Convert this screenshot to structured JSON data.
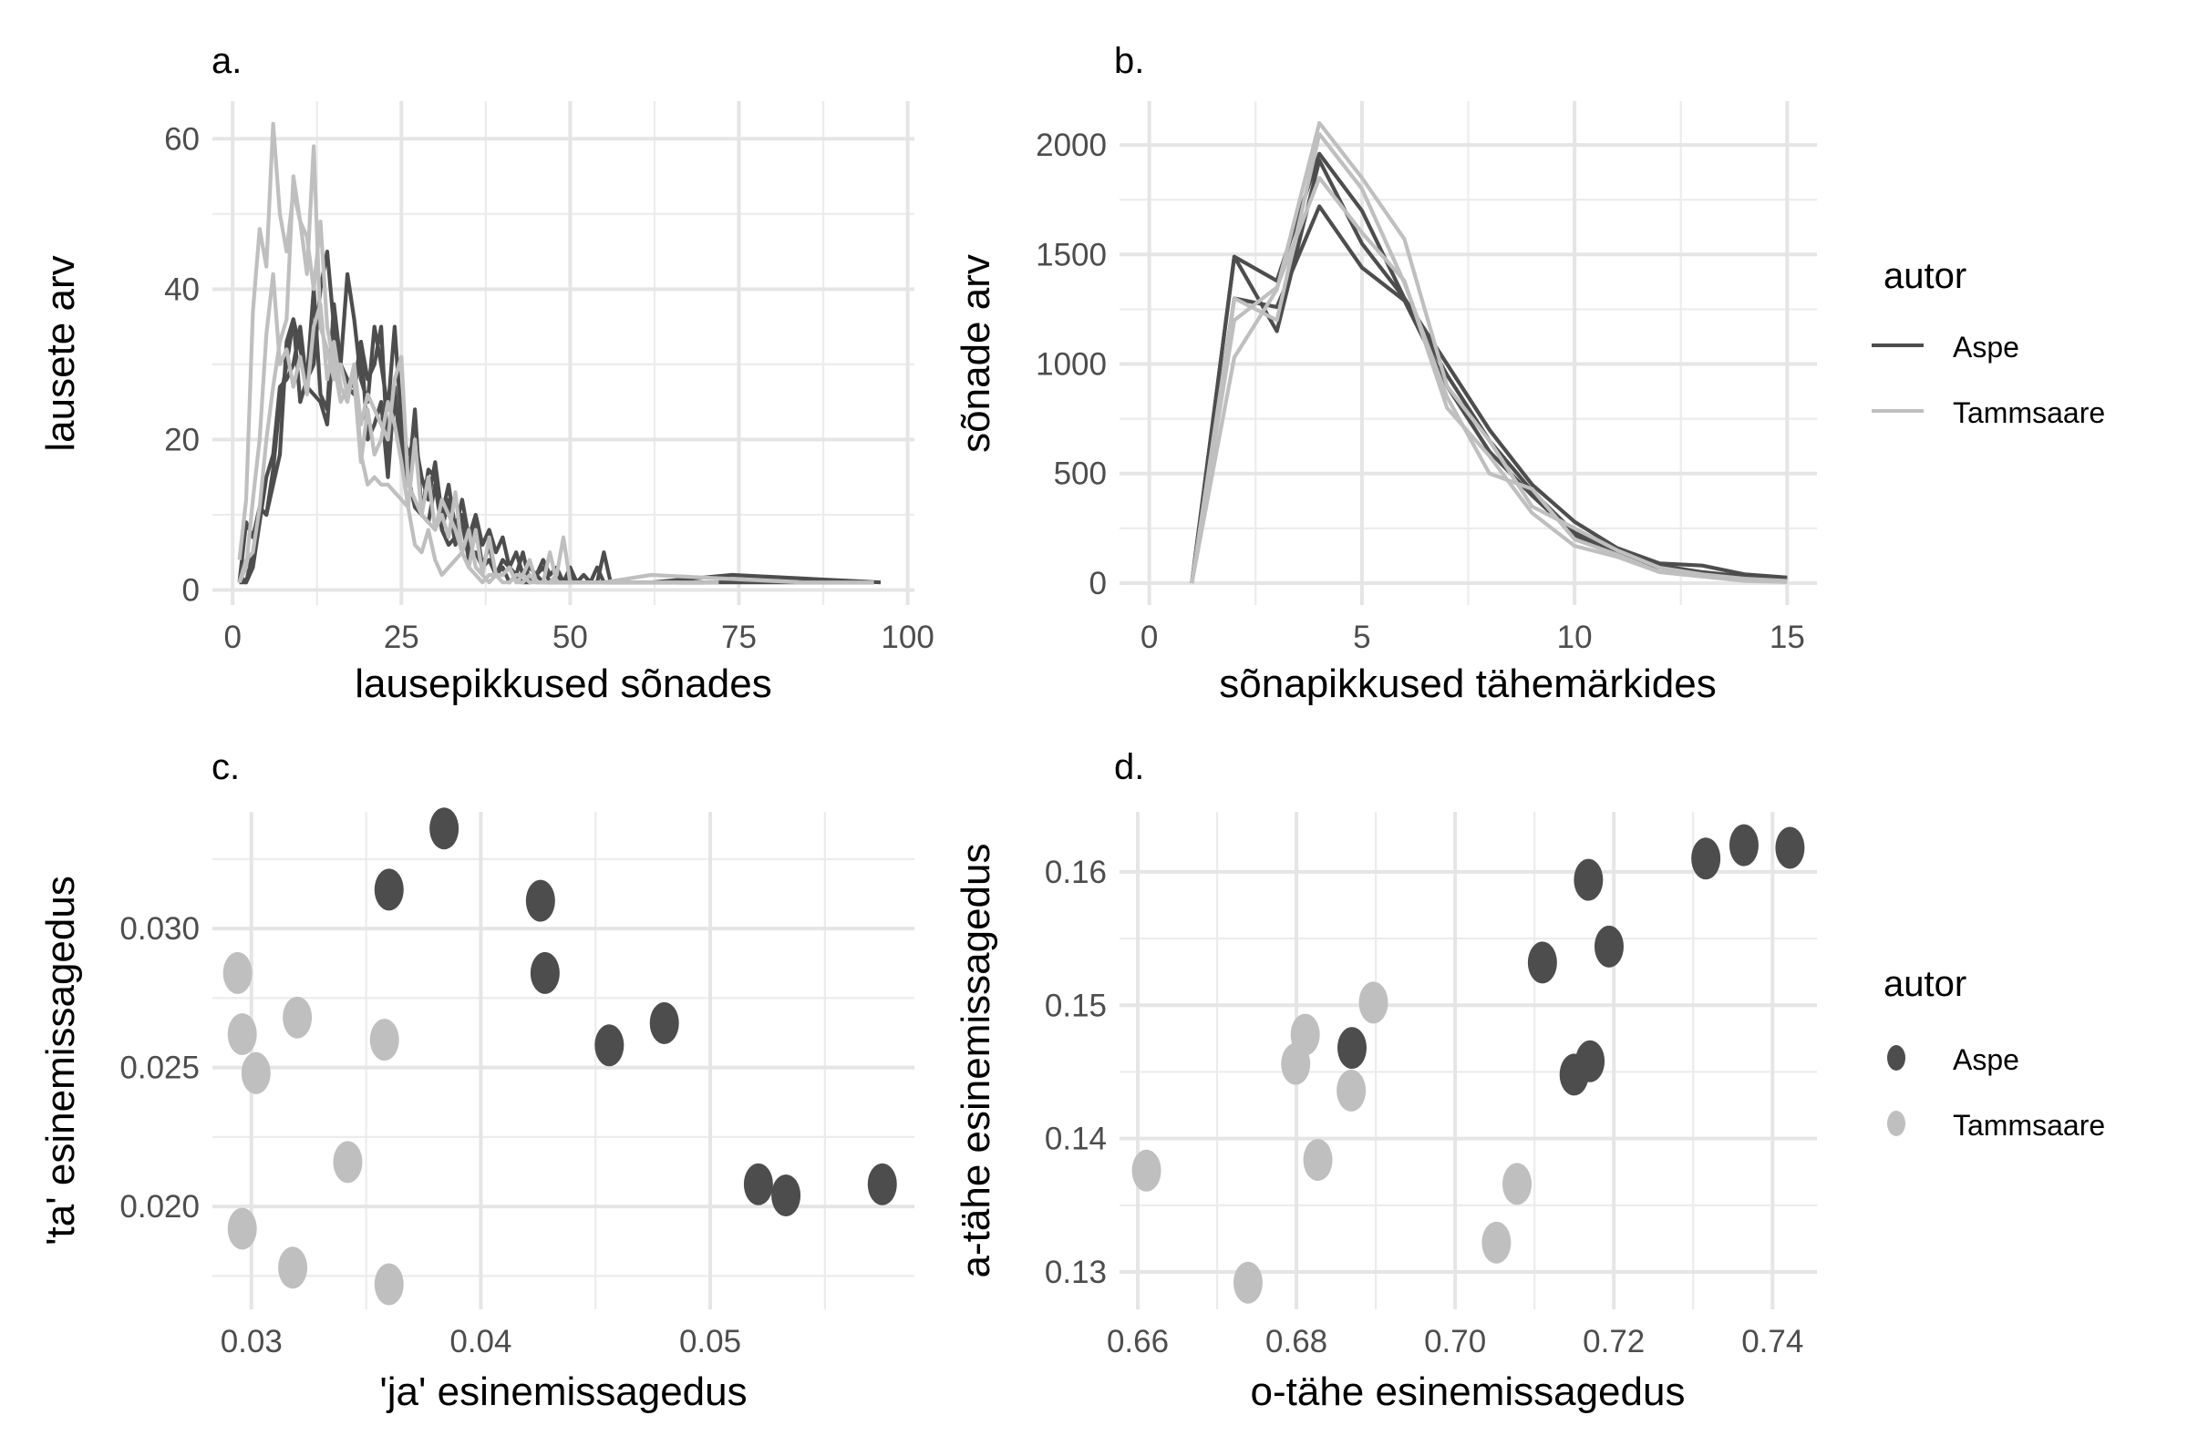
{
  "colors": {
    "Aspe": "#4d4d4d",
    "Tammsaare": "#bfbfbf",
    "grid": "#e5e5e5"
  },
  "legends": [
    {
      "title": "autor",
      "type": "line",
      "entries": [
        "Aspe",
        "Tammsaare"
      ]
    },
    {
      "title": "autor",
      "type": "point",
      "entries": [
        "Aspe",
        "Tammsaare"
      ]
    }
  ],
  "chart_data": [
    {
      "panel": "a.",
      "type": "line",
      "xlabel": "lausepikkused sõnades",
      "ylabel": "lausete arv",
      "xlim": [
        -3,
        101
      ],
      "ylim": [
        -2,
        65
      ],
      "xticks": [
        0,
        25,
        50,
        75,
        100
      ],
      "yticks": [
        0,
        20,
        40,
        60
      ],
      "xminor": [
        12.5,
        37.5,
        62.5,
        87.5
      ],
      "yminor": [
        10,
        30,
        50
      ],
      "grid": true,
      "series": [
        {
          "name": "Aspe",
          "x_start": 1,
          "values": [
            1,
            9,
            7,
            11,
            10,
            16,
            25,
            30,
            36,
            32,
            28,
            30,
            40,
            45,
            35,
            30,
            42,
            36,
            28,
            25,
            35,
            30,
            24,
            35,
            22,
            18,
            20,
            15,
            12,
            17,
            10,
            14,
            8,
            12,
            7,
            10,
            6,
            8,
            5,
            7,
            3,
            5,
            2,
            3,
            2,
            4,
            2,
            3,
            1,
            2,
            1,
            2,
            1,
            1,
            5,
            1,
            1
          ],
          "tail": [
            [
              62,
              1
            ],
            [
              74,
              2
            ],
            [
              96,
              1
            ]
          ]
        },
        {
          "name": "Aspe",
          "x_start": 1,
          "values": [
            2,
            1,
            5,
            11,
            10,
            14,
            18,
            33,
            36,
            25,
            28,
            40,
            26,
            24,
            38,
            30,
            27,
            26,
            33,
            28,
            30,
            35,
            18,
            25,
            20,
            14,
            24,
            10,
            16,
            15,
            8,
            12,
            6,
            10,
            5,
            9,
            3,
            6,
            2,
            4,
            3,
            2,
            5,
            1,
            2,
            3,
            1,
            2,
            1,
            3,
            1,
            2,
            1,
            3,
            1,
            1
          ],
          "tail": [
            [
              60,
              1
            ],
            [
              75,
              1
            ],
            [
              95,
              1
            ]
          ]
        },
        {
          "name": "Aspe",
          "x_start": 1,
          "values": [
            1,
            1,
            3,
            9,
            15,
            18,
            27,
            28,
            30,
            35,
            27,
            26,
            25,
            22,
            34,
            30,
            28,
            27,
            33,
            20,
            22,
            25,
            15,
            27,
            17,
            15,
            11,
            10,
            9,
            14,
            8,
            6,
            7,
            9,
            4,
            5,
            3,
            4,
            2,
            3,
            1,
            2,
            1,
            1,
            2,
            1,
            1,
            1,
            1,
            1,
            1
          ],
          "tail": [
            [
              58,
              1
            ],
            [
              70,
              1
            ]
          ]
        },
        {
          "name": "Tammsaare",
          "x_start": 1,
          "values": [
            4,
            12,
            37,
            48,
            43,
            62,
            50,
            45,
            53,
            49,
            42,
            59,
            35,
            32,
            28,
            30,
            26,
            30,
            22,
            26,
            24,
            22,
            20,
            28,
            31,
            14,
            12,
            10,
            15,
            8,
            10,
            7,
            13,
            5,
            3,
            8,
            2,
            7,
            2,
            2,
            3,
            1,
            1,
            2,
            1,
            1,
            1,
            2,
            7,
            1,
            1,
            1,
            1,
            1,
            1
          ],
          "tail": [
            [
              62,
              2
            ],
            [
              84,
              1
            ],
            [
              95,
              1
            ]
          ]
        },
        {
          "name": "Tammsaare",
          "x_start": 1,
          "values": [
            1,
            4,
            5,
            11,
            20,
            27,
            33,
            36,
            55,
            49,
            47,
            40,
            49,
            35,
            30,
            25,
            27,
            28,
            17,
            24,
            18,
            20,
            25,
            22,
            17,
            11,
            20,
            10,
            9,
            8,
            12,
            10,
            8,
            5,
            8,
            3,
            2,
            1,
            2,
            2,
            3,
            1,
            2,
            4,
            1,
            1,
            5,
            1,
            1,
            1
          ],
          "tail": [
            [
              60,
              1
            ],
            [
              72,
              1
            ]
          ]
        },
        {
          "name": "Tammsaare",
          "x_start": 1,
          "values": [
            1,
            3,
            12,
            20,
            34,
            42,
            30,
            32,
            27,
            31,
            26,
            35,
            38,
            28,
            33,
            27,
            25,
            30,
            18,
            14,
            15,
            14,
            14,
            13,
            12,
            11,
            6,
            5,
            8,
            4,
            2,
            3,
            4,
            5,
            3,
            2,
            1,
            2,
            2,
            1,
            1,
            2,
            2,
            1,
            1,
            1,
            1,
            1,
            1,
            1
          ],
          "tail": [
            [
              56,
              1
            ],
            [
              66,
              1
            ]
          ]
        }
      ]
    },
    {
      "panel": "b.",
      "type": "line",
      "xlabel": "sõnapikkused tähemärkides",
      "ylabel": "sõnade arv",
      "xlim": [
        -0.7,
        15.7
      ],
      "ylim": [
        -100,
        2200
      ],
      "xticks": [
        0,
        5,
        10,
        15
      ],
      "yticks": [
        0,
        500,
        1000,
        1500,
        2000
      ],
      "xminor": [
        2.5,
        7.5,
        12.5
      ],
      "yminor": [
        250,
        750,
        1250,
        1750
      ],
      "grid": true,
      "x": [
        1,
        2,
        3,
        4,
        5,
        6,
        7,
        8,
        9,
        10,
        11,
        12,
        13,
        14,
        15
      ],
      "series": [
        {
          "name": "Aspe",
          "values": [
            0,
            1490,
            1380,
            1960,
            1700,
            1300,
            1000,
            700,
            450,
            280,
            160,
            90,
            80,
            40,
            25
          ]
        },
        {
          "name": "Aspe",
          "values": [
            0,
            1490,
            1150,
            1930,
            1550,
            1300,
            950,
            650,
            420,
            230,
            140,
            80,
            50,
            30,
            20
          ]
        },
        {
          "name": "Aspe",
          "values": [
            0,
            1300,
            1260,
            1720,
            1440,
            1290,
            900,
            600,
            400,
            220,
            130,
            70,
            40,
            20,
            10
          ]
        },
        {
          "name": "Tammsaare",
          "values": [
            0,
            1030,
            1340,
            2100,
            1850,
            1570,
            900,
            650,
            350,
            250,
            150,
            70,
            40,
            20,
            10
          ]
        },
        {
          "name": "Tammsaare",
          "values": [
            0,
            1300,
            1200,
            2050,
            1800,
            1370,
            850,
            500,
            430,
            200,
            130,
            50,
            30,
            15,
            5
          ]
        },
        {
          "name": "Tammsaare",
          "values": [
            0,
            1200,
            1350,
            1850,
            1600,
            1380,
            800,
            580,
            320,
            170,
            120,
            50,
            30,
            10,
            5
          ]
        }
      ]
    },
    {
      "panel": "c.",
      "type": "scatter",
      "xlabel": "'ja' esinemissagedus",
      "ylabel": "'ta' esinemissagedus",
      "xlim": [
        0.0283,
        0.0589
      ],
      "ylim": [
        0.0163,
        0.0342
      ],
      "xticks": [
        0.03,
        0.04,
        0.05
      ],
      "xticklabels": [
        "0.03",
        "0.04",
        "0.05"
      ],
      "yticks": [
        0.02,
        0.025,
        0.03
      ],
      "yticklabels": [
        "0.020",
        "0.025",
        "0.030"
      ],
      "xminor": [
        0.035,
        0.045,
        0.055
      ],
      "yminor": [
        0.0175,
        0.0225,
        0.0275,
        0.0325
      ],
      "grid": true,
      "series": [
        {
          "name": "Aspe",
          "points": [
            [
              0.0384,
              0.0336
            ],
            [
              0.036,
              0.0314
            ],
            [
              0.0426,
              0.031
            ],
            [
              0.0428,
              0.0284
            ],
            [
              0.0456,
              0.0258
            ],
            [
              0.048,
              0.0266
            ],
            [
              0.0521,
              0.0208
            ],
            [
              0.0533,
              0.0204
            ],
            [
              0.0575,
              0.0208
            ]
          ]
        },
        {
          "name": "Tammsaare",
          "points": [
            [
              0.0294,
              0.0284
            ],
            [
              0.032,
              0.0268
            ],
            [
              0.0296,
              0.0262
            ],
            [
              0.0358,
              0.026
            ],
            [
              0.0302,
              0.0248
            ],
            [
              0.0342,
              0.0216
            ],
            [
              0.0296,
              0.0192
            ],
            [
              0.0318,
              0.0178
            ],
            [
              0.036,
              0.0172
            ]
          ]
        }
      ]
    },
    {
      "panel": "d.",
      "type": "scatter",
      "xlabel": "o-tähe esinemissagedus",
      "ylabel": "a-tähe esinemissagedus",
      "xlim": [
        0.6577,
        0.7456
      ],
      "ylim": [
        0.1272,
        0.1645
      ],
      "xticks": [
        0.66,
        0.68,
        0.7,
        0.72,
        0.74
      ],
      "xticklabels": [
        "0.66",
        "0.68",
        "0.70",
        "0.72",
        "0.74"
      ],
      "yticks": [
        0.13,
        0.14,
        0.15,
        0.16
      ],
      "yticklabels": [
        "0.13",
        "0.14",
        "0.15",
        "0.16"
      ],
      "xminor": [
        0.67,
        0.69,
        0.71,
        0.73
      ],
      "yminor": [
        0.135,
        0.145,
        0.155
      ],
      "grid": true,
      "series": [
        {
          "name": "Aspe",
          "points": [
            [
              0.7168,
              0.1594
            ],
            [
              0.7316,
              0.161
            ],
            [
              0.7364,
              0.162
            ],
            [
              0.7422,
              0.1618
            ],
            [
              0.7194,
              0.1544
            ],
            [
              0.711,
              0.1532
            ],
            [
              0.687,
              0.1468
            ],
            [
              0.717,
              0.1458
            ],
            [
              0.715,
              0.1448
            ]
          ]
        },
        {
          "name": "Tammsaare",
          "points": [
            [
              0.6897,
              0.1502
            ],
            [
              0.6811,
              0.1478
            ],
            [
              0.6799,
              0.1456
            ],
            [
              0.6869,
              0.1436
            ],
            [
              0.6827,
              0.1384
            ],
            [
              0.6611,
              0.1376
            ],
            [
              0.7078,
              0.1366
            ],
            [
              0.7052,
              0.1322
            ],
            [
              0.6739,
              0.1292
            ]
          ]
        }
      ]
    }
  ]
}
